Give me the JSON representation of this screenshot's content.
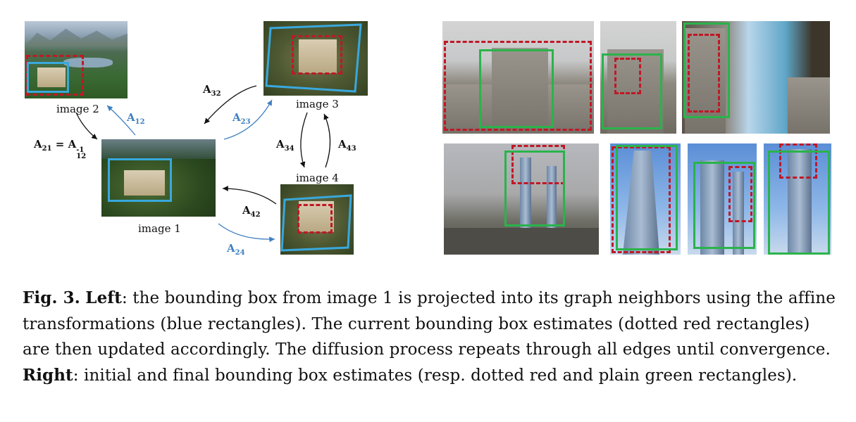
{
  "figure": {
    "left_labels": {
      "image1": "image 1",
      "image2": "image 2",
      "image3": "image 3",
      "image4": "image 4"
    },
    "arrows": {
      "a12": {
        "base": "A",
        "sub": "12"
      },
      "a21": {
        "base": "A",
        "sub": "21",
        "eq": "=",
        "rhs_base": "A",
        "rhs_sup": "-1",
        "rhs_sub": "12"
      },
      "a32": {
        "base": "A",
        "sub": "32"
      },
      "a23": {
        "base": "A",
        "sub": "23"
      },
      "a34": {
        "base": "A",
        "sub": "34"
      },
      "a43": {
        "base": "A",
        "sub": "43"
      },
      "a42": {
        "base": "A",
        "sub": "42"
      },
      "a24": {
        "base": "A",
        "sub": "24"
      }
    },
    "colors": {
      "projected_box": "#39a8dc",
      "estimate_box": "#c01826",
      "final_box": "#2ab34b",
      "blue_label": "#3f80c0"
    }
  },
  "caption": {
    "fig_label": "Fig. 3.",
    "left_label": "Left",
    "left_text": ": the bounding box from image 1 is projected into its graph neighbors using the affine transformations (blue rectangles). The current bounding box estimates (dotted red rectangles) are then updated accordingly. The diffusion process repeats through all edges until convergence. ",
    "right_label": "Right",
    "right_text": ": initial and final bounding box estimates (resp. dotted red and plain green rectangles)."
  }
}
